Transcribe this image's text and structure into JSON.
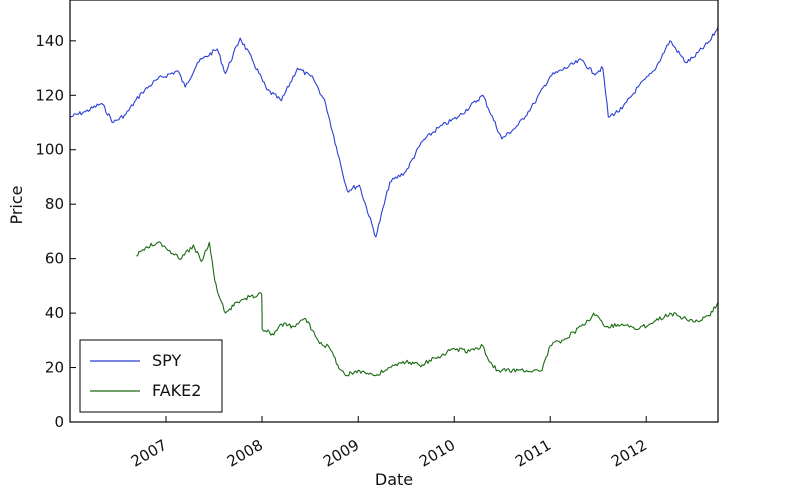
{
  "chart_data": {
    "type": "line",
    "xlabel": "Date",
    "ylabel": "Price",
    "x_type": "date",
    "xlim": [
      "2006-01-01",
      "2012-09-30"
    ],
    "ylim": [
      0,
      155
    ],
    "x_ticks": [
      "2007",
      "2008",
      "2009",
      "2010",
      "2011",
      "2012"
    ],
    "y_ticks": [
      0,
      20,
      40,
      60,
      80,
      100,
      120,
      140
    ],
    "grid": false,
    "legend_position": "bottom-left",
    "series": [
      {
        "name": "SPY",
        "color": "#2b3fd6",
        "x": [
          "2006-01-01",
          "2006-03-01",
          "2006-05-01",
          "2006-06-15",
          "2006-08-01",
          "2006-10-01",
          "2006-12-01",
          "2007-02-15",
          "2007-03-15",
          "2007-05-01",
          "2007-07-15",
          "2007-08-15",
          "2007-10-10",
          "2007-11-25",
          "2008-01-20",
          "2008-03-15",
          "2008-05-15",
          "2008-07-15",
          "2008-08-30",
          "2008-10-10",
          "2008-11-20",
          "2009-01-05",
          "2009-03-09",
          "2009-05-01",
          "2009-07-01",
          "2009-09-01",
          "2009-11-01",
          "2010-01-15",
          "2010-04-20",
          "2010-07-01",
          "2010-09-01",
          "2010-11-01",
          "2011-01-01",
          "2011-04-30",
          "2011-06-15",
          "2011-07-20",
          "2011-08-10",
          "2011-10-01",
          "2011-12-01",
          "2012-01-31",
          "2012-03-31",
          "2012-05-31",
          "2012-06-30",
          "2012-08-31",
          "2012-09-30"
        ],
        "y": [
          112,
          114,
          117,
          110,
          113,
          121,
          126,
          129,
          123,
          132,
          137,
          128,
          141,
          133,
          122,
          118,
          130,
          126,
          117,
          101,
          85,
          87,
          68,
          88,
          92,
          103,
          108,
          112,
          120,
          104,
          109,
          117,
          127,
          133,
          128,
          130,
          112,
          115,
          123,
          129,
          140,
          132,
          134,
          140,
          145
        ]
      },
      {
        "name": "FAKE2",
        "color": "#1a6b12",
        "x": [
          "2006-09-10",
          "2006-10-15",
          "2006-12-01",
          "2007-01-15",
          "2007-03-01",
          "2007-04-15",
          "2007-05-15",
          "2007-06-15",
          "2007-07-01",
          "2007-07-15",
          "2007-08-15",
          "2007-10-01",
          "2007-11-15",
          "2007-12-31",
          "2008-01-02",
          "2008-02-15",
          "2008-03-15",
          "2008-05-01",
          "2008-06-15",
          "2008-08-01",
          "2008-09-15",
          "2008-10-15",
          "2008-11-15",
          "2009-01-01",
          "2009-03-09",
          "2009-05-01",
          "2009-07-01",
          "2009-09-01",
          "2009-11-01",
          "2010-01-01",
          "2010-03-01",
          "2010-04-20",
          "2010-05-15",
          "2010-06-15",
          "2010-09-01",
          "2010-12-01",
          "2011-01-01",
          "2011-02-15",
          "2011-04-01",
          "2011-05-15",
          "2011-06-15",
          "2011-08-01",
          "2011-10-01",
          "2011-12-01",
          "2012-01-31",
          "2012-03-31",
          "2012-05-31",
          "2012-07-15",
          "2012-08-31",
          "2012-09-30"
        ],
        "y": [
          61,
          64,
          66,
          63,
          60,
          65,
          59,
          66,
          55,
          48,
          40,
          44,
          46,
          47,
          34,
          32,
          36,
          35,
          38,
          30,
          27,
          21,
          17,
          19,
          17,
          20,
          22,
          21,
          24,
          27,
          26,
          28,
          22,
          19,
          19,
          19,
          28,
          30,
          33,
          36,
          40,
          35,
          36,
          34,
          37,
          40,
          38,
          37,
          39,
          44
        ]
      }
    ]
  }
}
